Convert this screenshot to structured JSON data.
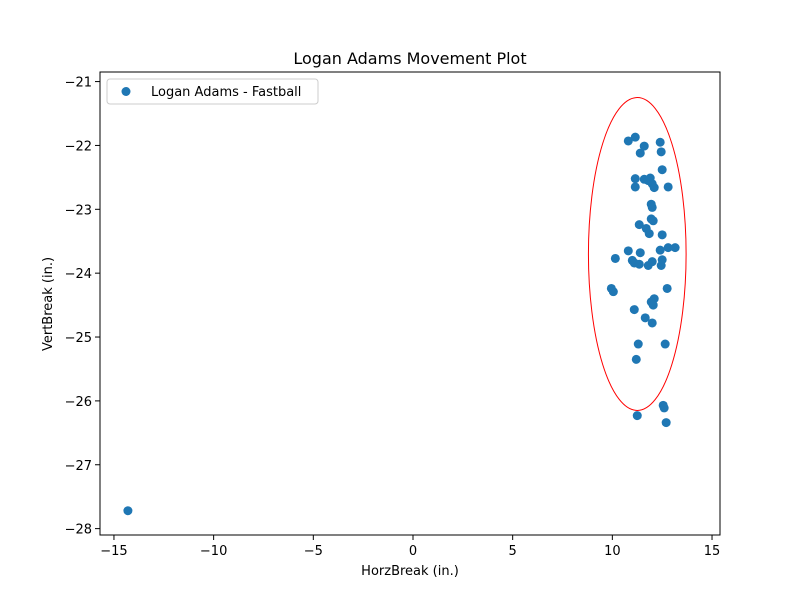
{
  "chart_data": {
    "type": "scatter",
    "title": "Logan Adams Movement Plot",
    "xlabel": "HorzBreak (in.)",
    "ylabel": "VertBreak (in.)",
    "xlim": [
      -15.7,
      15.4
    ],
    "ylim": [
      -28.1,
      -20.85
    ],
    "xticks": [
      -15,
      -10,
      -5,
      0,
      5,
      10,
      15
    ],
    "yticks": [
      -21,
      -22,
      -23,
      -24,
      -25,
      -26,
      -27,
      -28
    ],
    "grid": false,
    "legend_position": "top-left",
    "colors": {
      "series": "#1f77b4",
      "ellipse": "#ff0000"
    },
    "series": [
      {
        "name": "Logan Adams - Fastball",
        "points": [
          [
            -14.3,
            -27.72
          ],
          [
            10.8,
            -21.93
          ],
          [
            11.15,
            -21.87
          ],
          [
            11.4,
            -22.12
          ],
          [
            11.6,
            -22.01
          ],
          [
            12.4,
            -21.95
          ],
          [
            12.45,
            -22.1
          ],
          [
            12.5,
            -22.38
          ],
          [
            11.15,
            -22.52
          ],
          [
            11.15,
            -22.65
          ],
          [
            11.6,
            -22.53
          ],
          [
            11.8,
            -22.55
          ],
          [
            11.9,
            -22.51
          ],
          [
            12.0,
            -22.6
          ],
          [
            12.1,
            -22.66
          ],
          [
            12.8,
            -22.65
          ],
          [
            11.95,
            -22.92
          ],
          [
            12.0,
            -22.97
          ],
          [
            11.95,
            -23.15
          ],
          [
            12.05,
            -23.18
          ],
          [
            11.35,
            -23.24
          ],
          [
            11.7,
            -23.3
          ],
          [
            11.85,
            -23.38
          ],
          [
            12.5,
            -23.4
          ],
          [
            12.4,
            -23.64
          ],
          [
            12.8,
            -23.6
          ],
          [
            13.15,
            -23.6
          ],
          [
            10.8,
            -23.65
          ],
          [
            11.4,
            -23.68
          ],
          [
            10.15,
            -23.77
          ],
          [
            11.0,
            -23.8
          ],
          [
            11.1,
            -23.84
          ],
          [
            11.35,
            -23.86
          ],
          [
            11.8,
            -23.88
          ],
          [
            12.0,
            -23.82
          ],
          [
            12.45,
            -23.88
          ],
          [
            12.5,
            -23.79
          ],
          [
            9.95,
            -24.24
          ],
          [
            10.05,
            -24.29
          ],
          [
            12.75,
            -24.24
          ],
          [
            12.1,
            -24.4
          ],
          [
            11.95,
            -24.45
          ],
          [
            12.05,
            -24.5
          ],
          [
            11.1,
            -24.57
          ],
          [
            11.65,
            -24.7
          ],
          [
            12.0,
            -24.78
          ],
          [
            11.3,
            -25.11
          ],
          [
            12.65,
            -25.11
          ],
          [
            11.2,
            -25.35
          ],
          [
            12.55,
            -26.07
          ],
          [
            12.6,
            -26.11
          ],
          [
            11.25,
            -26.23
          ],
          [
            12.7,
            -26.34
          ]
        ]
      }
    ],
    "ellipse": {
      "cx": 11.25,
      "cy": -23.7,
      "rx": 2.45,
      "ry": 2.45
    }
  }
}
